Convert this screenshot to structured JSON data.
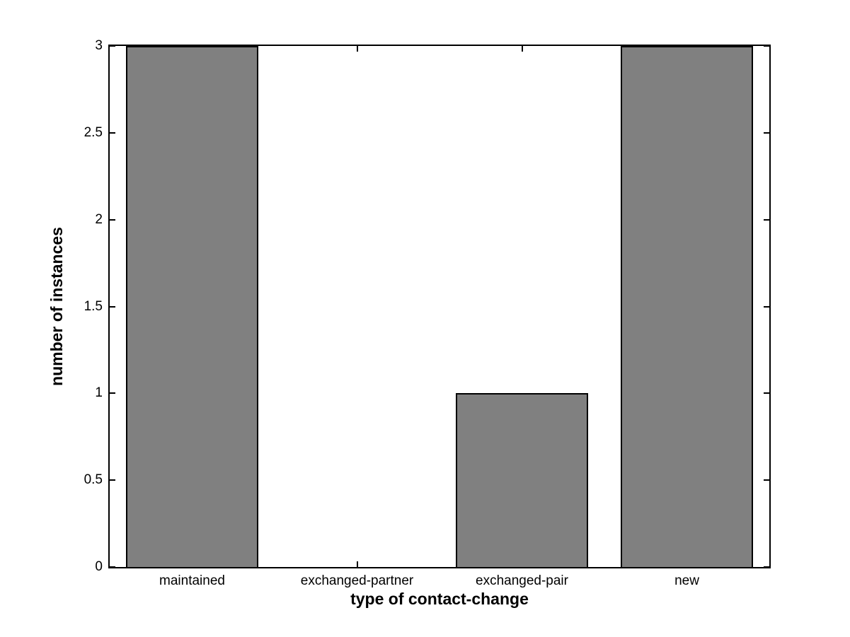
{
  "figure": {
    "background_color": "#ffffff",
    "plot_background_color": "#ffffff",
    "axis_color": "#000000"
  },
  "chart_data": {
    "type": "bar",
    "title": "",
    "xlabel": "type of contact-change",
    "ylabel": "number of instances",
    "categories": [
      "maintained",
      "exchanged-partner",
      "exchanged-pair",
      "new"
    ],
    "values": [
      3,
      0,
      1,
      3
    ],
    "xlim": [
      0.5,
      4.5
    ],
    "ylim": [
      0,
      3
    ],
    "yticks": [
      0,
      0.5,
      1,
      1.5,
      2,
      2.5,
      3
    ],
    "ytick_labels": [
      "0",
      "0.5",
      "1",
      "1.5",
      "2",
      "2.5",
      "3"
    ],
    "bar_width_fraction": 0.8,
    "bar_color": "#808080",
    "bar_edge_color": "#000000",
    "tick_direction": "in",
    "grid": false,
    "legend": null,
    "box": true
  }
}
